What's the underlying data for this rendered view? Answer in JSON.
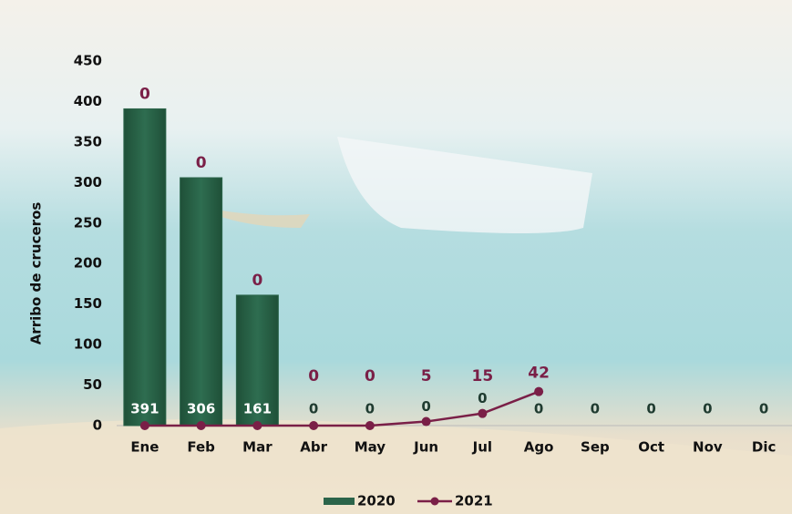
{
  "chart_data": {
    "type": "bar",
    "y_label": "Arribo de cruceros",
    "categories": [
      "Ene",
      "Feb",
      "Mar",
      "Abr",
      "May",
      "Jun",
      "Jul",
      "Ago",
      "Sep",
      "Oct",
      "Nov",
      "Dic"
    ],
    "series": [
      {
        "name": "2020",
        "type": "bar",
        "color": "#2b644a",
        "values": [
          391,
          306,
          161,
          0,
          0,
          0,
          0,
          0,
          0,
          0,
          0,
          0
        ]
      },
      {
        "name": "2021",
        "type": "line",
        "color": "#7a1f47",
        "values": [
          0,
          0,
          0,
          0,
          0,
          5,
          15,
          42,
          null,
          null,
          null,
          null
        ]
      }
    ],
    "ylim": [
      0,
      450
    ],
    "yticks": [
      0,
      50,
      100,
      150,
      200,
      250,
      300,
      350,
      400,
      450
    ],
    "legend": "bottom"
  }
}
